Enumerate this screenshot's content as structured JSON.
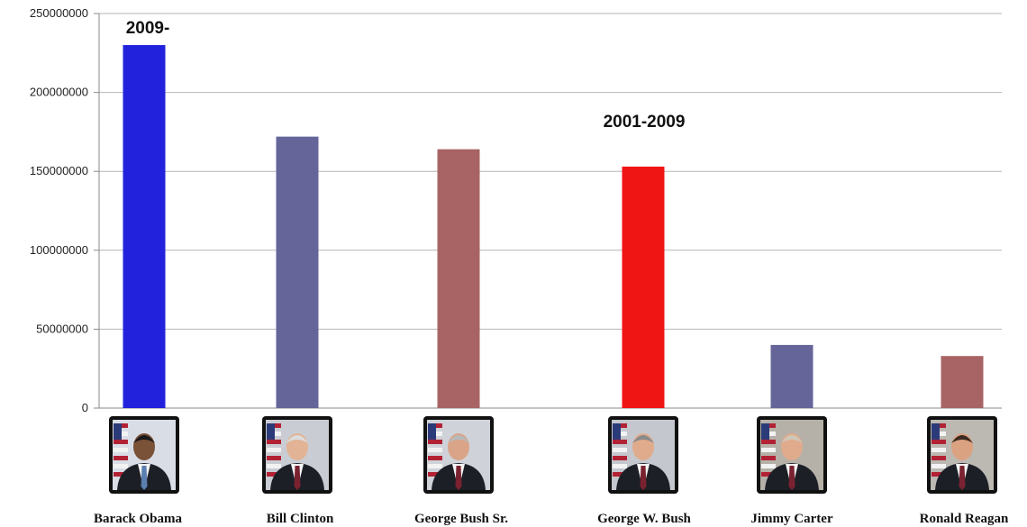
{
  "chart_data": {
    "type": "bar",
    "categories": [
      "Barack Obama",
      "Bill Clinton",
      "George Bush Sr.",
      "George W. Bush",
      "Jimmy Carter",
      "Ronald Reagan"
    ],
    "values": [
      230000000,
      172000000,
      164000000,
      153000000,
      40000000,
      33000000
    ],
    "bar_colors": [
      "#2222dd",
      "#65659a",
      "#a86464",
      "#f01515",
      "#65659a",
      "#a86464"
    ],
    "ylim": [
      0,
      250000000
    ],
    "yticks": [
      0,
      50000000,
      100000000,
      150000000,
      200000000,
      250000000
    ],
    "ytick_labels": [
      "0",
      "50000000",
      "100000000",
      "150000000",
      "200000000",
      "250000000"
    ],
    "grid": true,
    "annotations": [
      {
        "text": "2009-",
        "category": "Barack Obama"
      },
      {
        "text": "2001-2009",
        "category": "George W. Bush"
      }
    ],
    "category_icons": [
      "portrait-barack-obama",
      "portrait-bill-clinton",
      "portrait-george-bush-sr",
      "portrait-george-w-bush",
      "portrait-jimmy-carter",
      "portrait-ronald-reagan"
    ]
  }
}
